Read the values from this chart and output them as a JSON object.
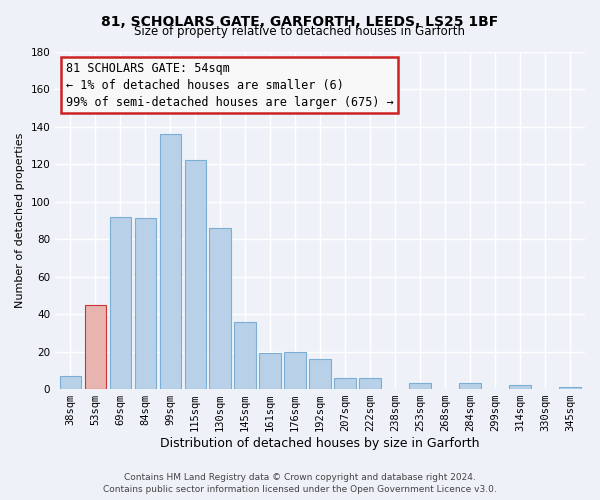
{
  "title1": "81, SCHOLARS GATE, GARFORTH, LEEDS, LS25 1BF",
  "title2": "Size of property relative to detached houses in Garforth",
  "xlabel": "Distribution of detached houses by size in Garforth",
  "ylabel": "Number of detached properties",
  "bin_labels": [
    "38sqm",
    "53sqm",
    "69sqm",
    "84sqm",
    "99sqm",
    "115sqm",
    "130sqm",
    "145sqm",
    "161sqm",
    "176sqm",
    "192sqm",
    "207sqm",
    "222sqm",
    "238sqm",
    "253sqm",
    "268sqm",
    "284sqm",
    "299sqm",
    "314sqm",
    "330sqm",
    "345sqm"
  ],
  "bin_values": [
    7,
    45,
    92,
    91,
    136,
    122,
    86,
    36,
    19,
    20,
    16,
    6,
    6,
    0,
    3,
    0,
    3,
    0,
    2,
    0,
    1
  ],
  "highlight_bin": 1,
  "bar_color": "#b8d0e8",
  "bar_edge_color": "#7aaed4",
  "highlight_color": "#e8b4b0",
  "highlight_edge_color": "#cc3333",
  "annotation_line1": "81 SCHOLARS GATE: 54sqm",
  "annotation_line2": "← 1% of detached houses are smaller (6)",
  "annotation_line3": "99% of semi-detached houses are larger (675) →",
  "annotation_box_facecolor": "#f8f8f8",
  "annotation_box_edgecolor": "#cc2222",
  "ylim": [
    0,
    180
  ],
  "yticks": [
    0,
    20,
    40,
    60,
    80,
    100,
    120,
    140,
    160,
    180
  ],
  "footer1": "Contains HM Land Registry data © Crown copyright and database right 2024.",
  "footer2": "Contains public sector information licensed under the Open Government Licence v3.0.",
  "bg_color": "#eef2f8",
  "grid_color": "#ffffff",
  "title1_fontsize": 10,
  "title2_fontsize": 8.5,
  "xlabel_fontsize": 9,
  "ylabel_fontsize": 8,
  "tick_fontsize": 7.5,
  "annotation_fontsize": 8.5,
  "footer_fontsize": 6.5
}
